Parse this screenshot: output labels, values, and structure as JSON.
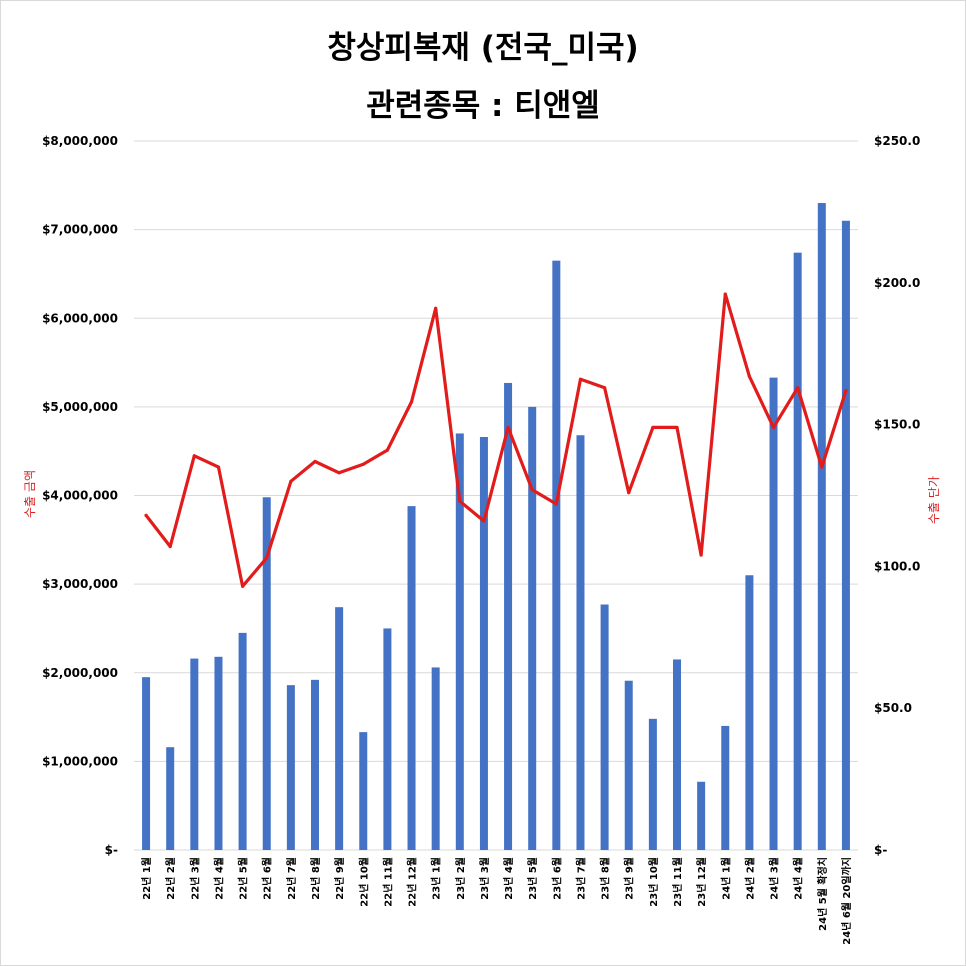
{
  "title_line1": "창상피복재 (전국_미국)",
  "title_line2": "관련종목 : 티앤엘",
  "colors": {
    "bar": "#4472c4",
    "line": "#e21b1b",
    "grid": "#d9d9d9"
  },
  "chart_data": {
    "type": "bar",
    "combo": "bar + line (secondary axis)",
    "title": "창상피복재 (전국_미국) 관련종목 : 티앤엘",
    "ylabel_left": "수출 금액",
    "ylabel_right": "수출 단가",
    "ylim_left": [
      0,
      8000000
    ],
    "ylim_right": [
      0,
      250
    ],
    "yticks_left": [
      "$-",
      "$1,000,000",
      "$2,000,000",
      "$3,000,000",
      "$4,000,000",
      "$5,000,000",
      "$6,000,000",
      "$7,000,000",
      "$8,000,000"
    ],
    "yticks_right": [
      "$-",
      "$50.0",
      "$100.0",
      "$150.0",
      "$200.0",
      "$250.0"
    ],
    "grid": true,
    "legend": "none",
    "categories": [
      "22년 1월",
      "22년 2월",
      "22년 3월",
      "22년 4월",
      "22년 5월",
      "22년 6월",
      "22년 7월",
      "22년 8월",
      "22년 9월",
      "22년 10월",
      "22년 11월",
      "22년 12월",
      "23년 1월",
      "23년 2월",
      "23년 3월",
      "23년 4월",
      "23년 5월",
      "23년 6월",
      "23년 7월",
      "23년 8월",
      "23년 9월",
      "23년 10월",
      "23년 11월",
      "23년 12월",
      "24년 1월",
      "24년 2월",
      "24년 3월",
      "24년 4월",
      "24년 5월 확정치",
      "24년 6월 20일까지"
    ],
    "series": [
      {
        "name": "수출 금액",
        "type": "bar",
        "axis": "left",
        "values": [
          1950000,
          1160000,
          2160000,
          2180000,
          2450000,
          3980000,
          1860000,
          1920000,
          2740000,
          1330000,
          2500000,
          3880000,
          2060000,
          4700000,
          4660000,
          5270000,
          5000000,
          6650000,
          4680000,
          2770000,
          1910000,
          1480000,
          2150000,
          770000,
          1400000,
          3100000,
          5330000,
          6740000,
          7300000,
          7100000
        ]
      },
      {
        "name": "수출 단가",
        "type": "line",
        "axis": "right",
        "values": [
          118,
          107,
          139,
          135,
          93,
          103,
          130,
          137,
          133,
          136,
          141,
          158,
          191,
          123,
          116,
          149,
          127,
          122,
          166,
          163,
          126,
          149,
          149,
          104,
          196,
          167,
          149,
          163,
          135,
          162
        ]
      }
    ]
  }
}
